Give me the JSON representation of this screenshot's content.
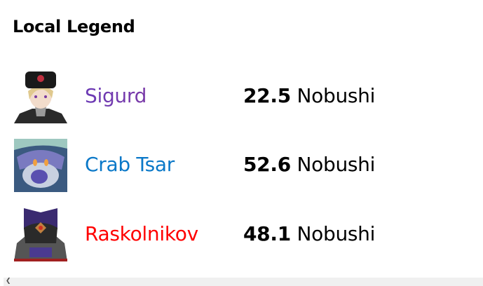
{
  "title": "Local Legend",
  "entries": [
    {
      "name": "Sigurd",
      "value": "22.5",
      "unit": "Nobushi",
      "color": "#7035b0",
      "avatar": "sigurd-portrait"
    },
    {
      "name": "Crab Tsar",
      "value": "52.6",
      "unit": "Nobushi",
      "color": "#0a78c8",
      "avatar": "crab-tsar-portrait"
    },
    {
      "name": "Raskolnikov",
      "value": "48.1",
      "unit": "Nobushi",
      "color": "#ff0000",
      "avatar": "raskolnikov-portrait"
    }
  ],
  "scrollbar": {
    "arrow_icon": "chevron-left-icon"
  }
}
